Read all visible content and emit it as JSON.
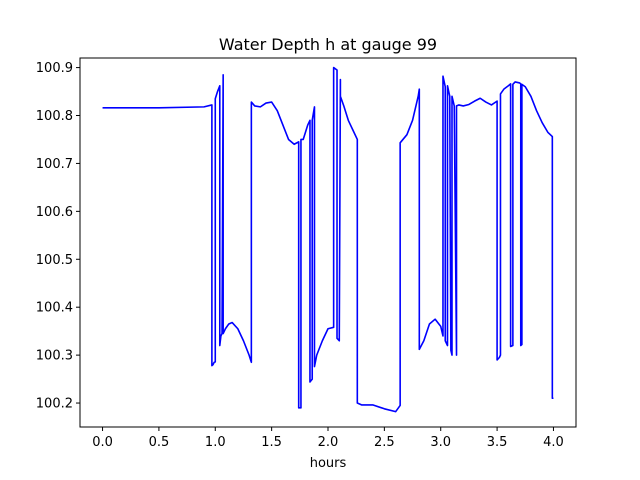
{
  "chart_data": {
    "type": "line",
    "title": "Water Depth h at gauge 99",
    "xlabel": "hours",
    "ylabel": "",
    "xlim": [
      -0.2,
      4.2
    ],
    "ylim": [
      100.15,
      100.92
    ],
    "grid": false,
    "legend": "none",
    "x_ticks": [
      {
        "value": 0.0,
        "label": "0.0"
      },
      {
        "value": 0.5,
        "label": "0.5"
      },
      {
        "value": 1.0,
        "label": "1.0"
      },
      {
        "value": 1.5,
        "label": "1.5"
      },
      {
        "value": 2.0,
        "label": "2.0"
      },
      {
        "value": 2.5,
        "label": "2.5"
      },
      {
        "value": 3.0,
        "label": "3.0"
      },
      {
        "value": 3.5,
        "label": "3.5"
      },
      {
        "value": 4.0,
        "label": "4.0"
      }
    ],
    "y_ticks": [
      {
        "value": 100.2,
        "label": "100.2"
      },
      {
        "value": 100.3,
        "label": "100.3"
      },
      {
        "value": 100.4,
        "label": "100.4"
      },
      {
        "value": 100.5,
        "label": "100.5"
      },
      {
        "value": 100.6,
        "label": "100.6"
      },
      {
        "value": 100.7,
        "label": "100.7"
      },
      {
        "value": 100.8,
        "label": "100.8"
      },
      {
        "value": 100.9,
        "label": "100.9"
      }
    ],
    "series": [
      {
        "color": "#0000ff",
        "x": [
          0.0,
          0.5,
          0.9,
          0.97,
          0.97,
          0.98,
          0.99,
          1.0,
          1.0,
          1.02,
          1.04,
          1.04,
          1.05,
          1.06,
          1.07,
          1.07,
          1.09,
          1.12,
          1.15,
          1.2,
          1.25,
          1.3,
          1.32,
          1.32,
          1.35,
          1.4,
          1.45,
          1.5,
          1.55,
          1.6,
          1.65,
          1.7,
          1.74,
          1.74,
          1.76,
          1.76,
          1.78,
          1.82,
          1.84,
          1.84,
          1.86,
          1.86,
          1.88,
          1.88,
          1.9,
          1.95,
          2.0,
          2.05,
          2.05,
          2.08,
          2.08,
          2.1,
          2.11,
          2.11,
          2.14,
          2.18,
          2.22,
          2.26,
          2.26,
          2.3,
          2.4,
          2.5,
          2.6,
          2.64,
          2.64,
          2.7,
          2.75,
          2.8,
          2.81,
          2.81,
          2.85,
          2.9,
          2.95,
          3.0,
          3.02,
          3.02,
          3.04,
          3.04,
          3.06,
          3.06,
          3.08,
          3.09,
          3.1,
          3.1,
          3.12,
          3.14,
          3.14,
          3.16,
          3.2,
          3.25,
          3.3,
          3.35,
          3.4,
          3.45,
          3.5,
          3.5,
          3.52,
          3.53,
          3.53,
          3.56,
          3.6,
          3.62,
          3.62,
          3.64,
          3.64,
          3.66,
          3.7,
          3.71,
          3.71,
          3.72,
          3.72,
          3.75,
          3.8,
          3.85,
          3.9,
          3.95,
          3.99,
          3.99,
          4.0
        ],
        "y": [
          100.816,
          100.816,
          100.818,
          100.822,
          100.278,
          100.28,
          100.285,
          100.286,
          100.835,
          100.85,
          100.862,
          100.32,
          100.34,
          100.345,
          100.885,
          100.345,
          100.355,
          100.365,
          100.368,
          100.355,
          100.33,
          100.3,
          100.285,
          100.828,
          100.82,
          100.818,
          100.826,
          100.828,
          100.81,
          100.78,
          100.75,
          100.74,
          100.745,
          100.19,
          100.19,
          100.75,
          100.75,
          100.78,
          100.79,
          100.244,
          100.25,
          100.79,
          100.818,
          100.276,
          100.3,
          100.33,
          100.355,
          100.358,
          100.9,
          100.895,
          100.335,
          100.33,
          100.875,
          100.84,
          100.82,
          100.79,
          100.77,
          100.75,
          100.2,
          100.196,
          100.196,
          100.188,
          100.182,
          100.195,
          100.743,
          100.76,
          100.79,
          100.84,
          100.855,
          100.312,
          100.33,
          100.365,
          100.375,
          100.36,
          100.34,
          100.882,
          100.86,
          100.33,
          100.32,
          100.862,
          100.84,
          100.31,
          100.3,
          100.84,
          100.82,
          100.3,
          100.82,
          100.822,
          100.82,
          100.823,
          100.83,
          100.836,
          100.828,
          100.822,
          100.83,
          100.29,
          100.295,
          100.3,
          100.845,
          100.855,
          100.862,
          100.866,
          100.318,
          100.32,
          100.865,
          100.87,
          100.868,
          100.866,
          100.32,
          100.322,
          100.865,
          100.86,
          100.84,
          100.81,
          100.785,
          100.765,
          100.756,
          100.21,
          100.21
        ]
      }
    ]
  }
}
